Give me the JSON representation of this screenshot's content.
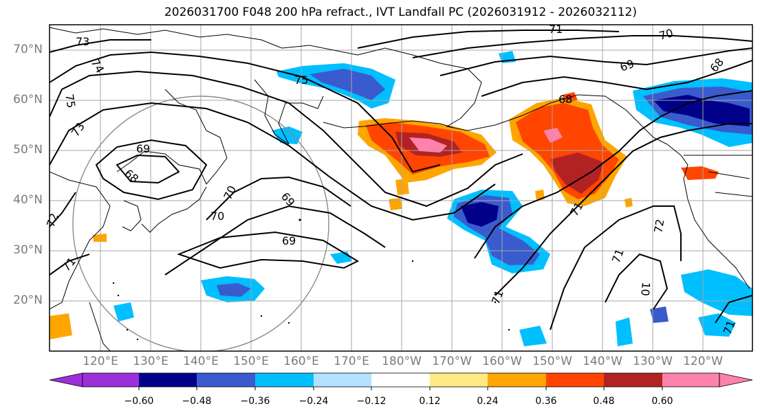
{
  "title": "2026031700 F048 200 hPa refract., IVT Landfall PC (2026031912 - 2026032112)",
  "map": {
    "lat_labels": [
      "70°N",
      "60°N",
      "50°N",
      "40°N",
      "30°N",
      "20°N"
    ],
    "lon_labels": [
      "120°E",
      "130°E",
      "140°E",
      "150°E",
      "160°E",
      "170°E",
      "180°W",
      "170°W",
      "160°W",
      "150°W",
      "140°W",
      "130°W",
      "120°W"
    ],
    "contour_labels": [
      "73",
      "74",
      "75",
      "73",
      "69",
      "68",
      "75",
      "70",
      "70",
      "69",
      "69",
      "72",
      "71",
      "71",
      "70",
      "69",
      "68",
      "68",
      "71",
      "72",
      "71",
      "10",
      "71",
      "71"
    ],
    "colors": {
      "neg_060": "#9b30d9",
      "neg_048": "#00008b",
      "neg_036": "#3a5bcd",
      "neg_024": "#00bfff",
      "neg_012": "#b2e2ff",
      "zero": "#ffffff",
      "pos_012": "#ffe985",
      "pos_024": "#ffa500",
      "pos_036": "#ff4500",
      "pos_048": "#b22222",
      "pos_060": "#ff82ab"
    }
  },
  "colorbar": {
    "ticks": [
      "−0.60",
      "−0.48",
      "−0.36",
      "−0.24",
      "−0.12",
      "0.12",
      "0.24",
      "0.36",
      "0.48",
      "0.60"
    ],
    "colors": [
      "#9b30d9",
      "#00008b",
      "#3a5bcd",
      "#00bfff",
      "#b2e2ff",
      "#ffffff",
      "#ffe985",
      "#ffa500",
      "#ff4500",
      "#b22222",
      "#ff82ab"
    ]
  }
}
